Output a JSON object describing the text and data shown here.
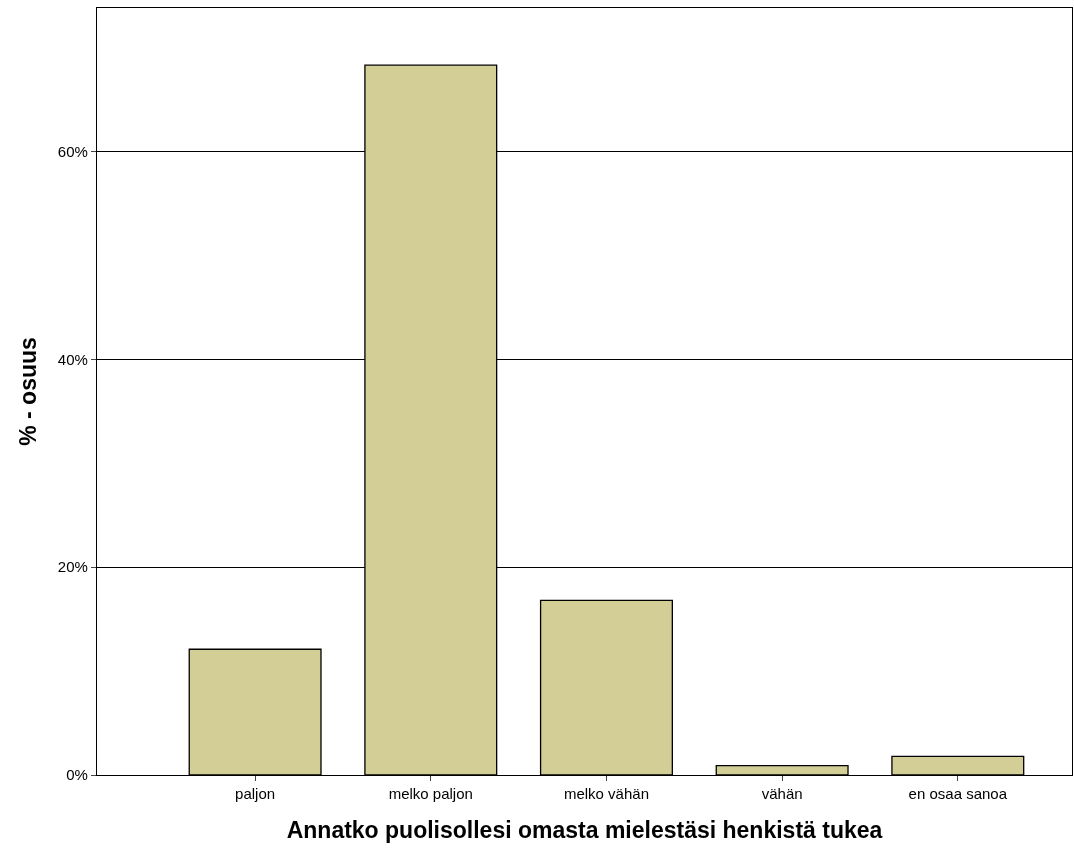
{
  "chart_data": {
    "type": "bar",
    "xlabel": "Annatko puolisollesi omasta mielestäsi henkistä tukea",
    "ylabel": "% - osuus",
    "categories": [
      "paljon",
      "melko paljon",
      "melko vähän",
      "vähän",
      "en osaa sanoa"
    ],
    "values": [
      12.1,
      68.3,
      16.8,
      0.9,
      1.8
    ],
    "color": "#d3cd96",
    "ylim": [
      0,
      73.8
    ],
    "yticks": [
      {
        "value": 0,
        "label": "0%"
      },
      {
        "value": 20,
        "label": "20%"
      },
      {
        "value": 40,
        "label": "40%"
      },
      {
        "value": 60,
        "label": "60%"
      }
    ],
    "grid": "y"
  }
}
